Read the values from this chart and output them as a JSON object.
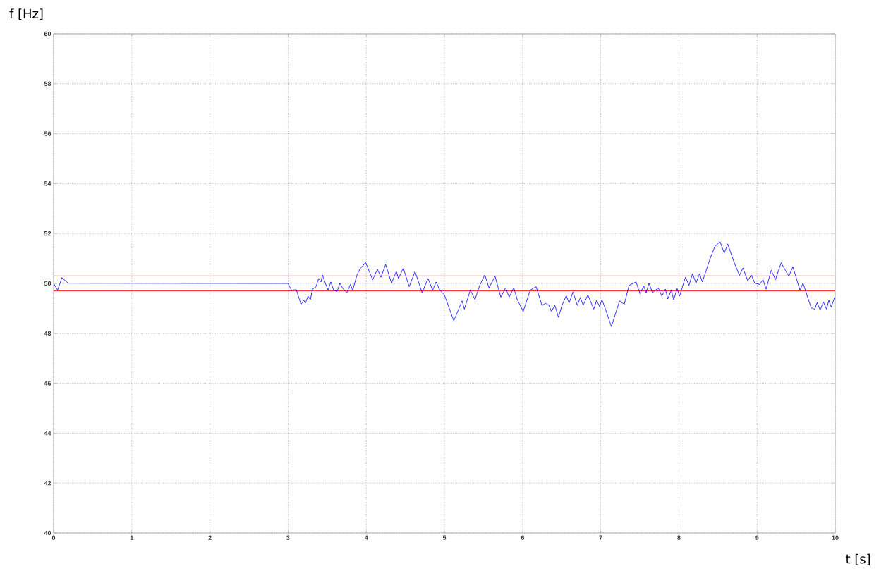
{
  "chart_data": {
    "type": "line",
    "xlabel": "t [s]",
    "ylabel": "f [Hz]",
    "x": [
      0,
      0.051,
      0.106,
      0.187,
      3.0,
      3.042,
      3.105,
      3.165,
      3.201,
      3.222,
      3.255,
      3.285,
      3.312,
      3.357,
      3.391,
      3.421,
      3.439,
      3.466,
      3.511,
      3.547,
      3.583,
      3.628,
      3.662,
      3.707,
      3.752,
      3.797,
      3.827,
      3.881,
      3.917,
      3.992,
      4.082,
      4.143,
      4.188,
      4.248,
      4.323,
      4.384,
      4.413,
      4.474,
      4.549,
      4.624,
      4.714,
      4.79,
      4.849,
      4.894,
      4.94,
      5.0,
      5.12,
      5.226,
      5.255,
      5.331,
      5.391,
      5.451,
      5.517,
      5.571,
      5.647,
      5.722,
      5.783,
      5.828,
      5.887,
      5.932,
      6.008,
      6.098,
      6.173,
      6.248,
      6.293,
      6.338,
      6.369,
      6.414,
      6.459,
      6.504,
      6.559,
      6.595,
      6.645,
      6.7,
      6.739,
      6.775,
      6.835,
      6.911,
      6.947,
      6.986,
      7.015,
      7.061,
      7.136,
      7.241,
      7.301,
      7.362,
      7.452,
      7.502,
      7.551,
      7.581,
      7.617,
      7.662,
      7.737,
      7.782,
      7.827,
      7.858,
      7.903,
      7.933,
      7.978,
      8.008,
      8.084,
      8.129,
      8.174,
      8.219,
      8.264,
      8.3,
      8.4,
      8.459,
      8.526,
      8.58,
      8.625,
      8.7,
      8.775,
      8.82,
      8.881,
      8.926,
      8.971,
      9.032,
      9.077,
      9.116,
      9.181,
      9.236,
      9.308,
      9.362,
      9.407,
      9.458,
      9.549,
      9.588,
      9.693,
      9.738,
      9.768,
      9.808,
      9.849,
      9.888,
      9.919,
      9.949,
      10.0
    ],
    "series": [
      {
        "color": "#0000ff",
        "values": [
          50.0,
          49.73,
          50.23,
          50.01,
          50.0,
          49.73,
          49.75,
          49.16,
          49.32,
          49.21,
          49.49,
          49.35,
          49.77,
          49.87,
          50.2,
          50.06,
          50.34,
          50.1,
          49.73,
          50.06,
          49.73,
          49.68,
          50.01,
          49.77,
          49.63,
          49.96,
          49.73,
          50.34,
          50.57,
          50.84,
          50.15,
          50.57,
          50.25,
          50.76,
          50.01,
          50.48,
          50.2,
          50.62,
          49.87,
          50.48,
          49.63,
          50.2,
          49.73,
          50.06,
          49.73,
          49.54,
          48.5,
          49.3,
          48.97,
          49.73,
          49.35,
          49.92,
          50.34,
          49.82,
          50.29,
          49.45,
          49.82,
          49.45,
          49.82,
          49.35,
          48.88,
          49.73,
          49.87,
          49.12,
          49.2,
          49.12,
          48.88,
          49.12,
          48.64,
          49.12,
          49.51,
          49.21,
          49.66,
          49.12,
          49.44,
          49.12,
          49.54,
          48.97,
          49.32,
          49.07,
          49.35,
          48.97,
          48.27,
          49.3,
          49.16,
          49.92,
          50.06,
          49.59,
          49.89,
          49.63,
          50.01,
          49.63,
          49.82,
          49.49,
          49.77,
          49.38,
          49.73,
          49.35,
          49.79,
          49.49,
          50.25,
          49.92,
          50.39,
          50.01,
          50.39,
          50.06,
          51.0,
          51.47,
          51.68,
          51.21,
          51.58,
          50.9,
          50.32,
          50.62,
          50.1,
          50.34,
          50.01,
          49.96,
          50.15,
          49.77,
          50.53,
          50.15,
          50.83,
          50.53,
          50.29,
          50.67,
          49.73,
          50.01,
          49.02,
          48.97,
          49.23,
          48.93,
          49.26,
          48.97,
          49.32,
          49.05,
          49.51
        ]
      }
    ],
    "xlim": [
      0,
      10
    ],
    "ylim": [
      40,
      60
    ],
    "xticks": [
      0,
      1,
      2,
      3,
      4,
      5,
      6,
      7,
      8,
      9,
      10
    ],
    "yticks": [
      40,
      42,
      44,
      46,
      48,
      50,
      52,
      54,
      56,
      58,
      60
    ],
    "grid": true,
    "ref_lines": [
      {
        "axis": "y",
        "value": 50.3,
        "color": "#ff0000"
      },
      {
        "axis": "y",
        "value": 49.7,
        "color": "#ff0000"
      }
    ]
  }
}
